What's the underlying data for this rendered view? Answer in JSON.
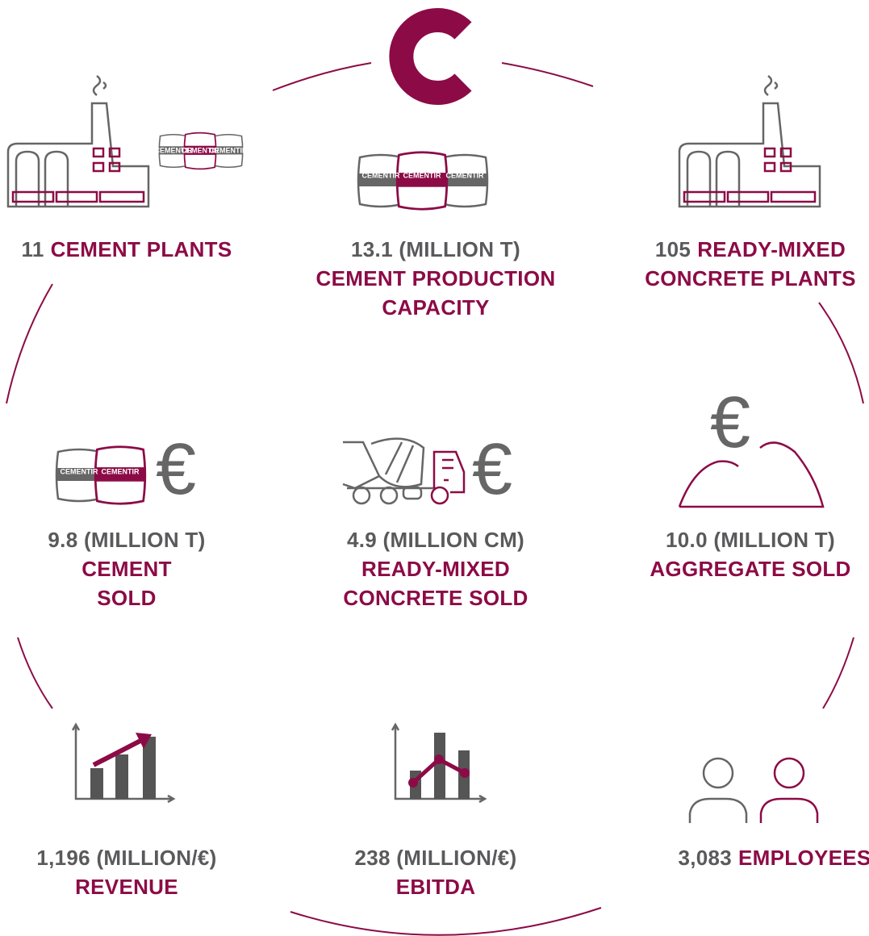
{
  "brand": {
    "bag_label": "CEMENTIR",
    "currency_symbol": "€"
  },
  "items": [
    {
      "figure": "11",
      "label": [
        "CEMENT PLANTS"
      ]
    },
    {
      "figure": "13.1 (MILLION T)",
      "label": [
        "CEMENT PRODUCTION",
        "CAPACITY"
      ]
    },
    {
      "figure": "105",
      "label": [
        "READY-MIXED",
        "CONCRETE PLANTS"
      ]
    },
    {
      "figure": "9.8 (MILLION T)",
      "label": [
        "CEMENT",
        "SOLD"
      ]
    },
    {
      "figure": "4.9 (MILLION CM)",
      "label": [
        "READY-MIXED",
        "CONCRETE SOLD"
      ]
    },
    {
      "figure": "10.0 (MILLION T)",
      "label": [
        "AGGREGATE SOLD"
      ]
    },
    {
      "figure": "1,196 (MILLION/€)",
      "label": [
        "REVENUE"
      ]
    },
    {
      "figure": "238 (MILLION/€)",
      "label": [
        "EBITDA"
      ]
    },
    {
      "figure": "3,083",
      "label": [
        "EMPLOYEES"
      ]
    }
  ]
}
